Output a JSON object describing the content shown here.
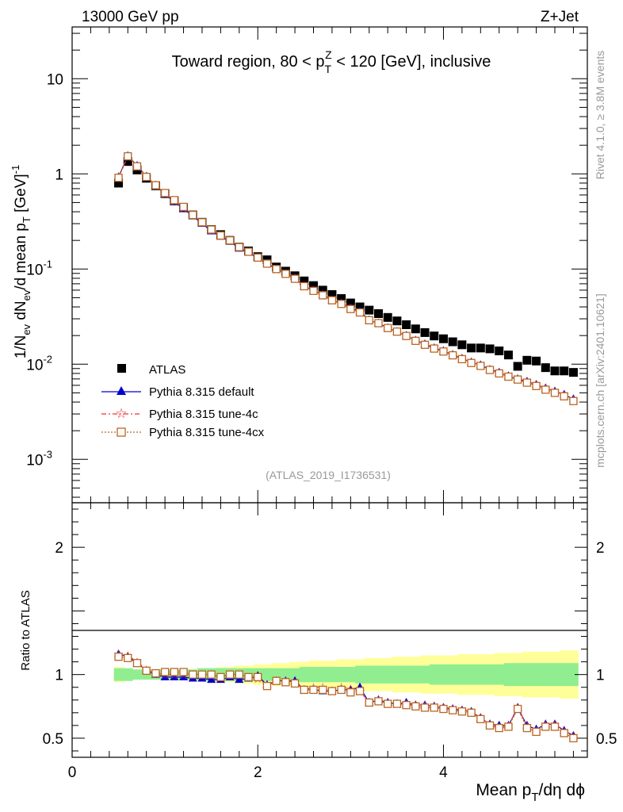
{
  "header": {
    "energy_label": "13000 GeV pp",
    "process_label": "Z+Jet",
    "region_title": "Toward region, 80 < p_T^Z < 120 [GeV], inclusive",
    "analysis_id": "(ATLAS_2019_I1736531)",
    "side_rivet": "Rivet 4.1.0, ≥ 3.8M events",
    "side_mcplots": "mcplots.cern.ch [arXiv:2401.10621]"
  },
  "colors": {
    "atlas": "#000000",
    "default": "#0000cc",
    "tune4c": "#ee3333",
    "tune4cx": "#bb6622",
    "band_inner": "#90ee90",
    "band_outer": "#ffff99"
  },
  "chart_data": [
    {
      "id": "main",
      "type": "scatter",
      "yscale": "log",
      "xlim": [
        0,
        5.55
      ],
      "ylim": [
        0.00035,
        35
      ],
      "ylabel": "1/N_ev dN_ev/d mean p_T [GeV]^-1",
      "ytick_labels": [
        "10^-3",
        "10^-2",
        "10^-1",
        "1",
        "10"
      ],
      "x": [
        0.5,
        0.6,
        0.7,
        0.8,
        0.9,
        1.0,
        1.1,
        1.2,
        1.3,
        1.4,
        1.5,
        1.6,
        1.7,
        1.8,
        1.9,
        2.0,
        2.1,
        2.2,
        2.3,
        2.4,
        2.5,
        2.6,
        2.7,
        2.8,
        2.9,
        3.0,
        3.1,
        3.2,
        3.3,
        3.4,
        3.5,
        3.6,
        3.7,
        3.8,
        3.9,
        4.0,
        4.1,
        4.2,
        4.3,
        4.4,
        4.5,
        4.6,
        4.7,
        4.8,
        4.9,
        5.0,
        5.1,
        5.2,
        5.3,
        5.4
      ],
      "series": [
        {
          "name": "ATLAS",
          "marker": "square",
          "values": [
            0.8,
            1.35,
            1.1,
            0.9,
            0.75,
            0.62,
            0.52,
            0.44,
            0.37,
            0.31,
            0.26,
            0.23,
            0.2,
            0.17,
            0.155,
            0.135,
            0.125,
            0.105,
            0.095,
            0.085,
            0.075,
            0.067,
            0.06,
            0.054,
            0.049,
            0.044,
            0.04,
            0.037,
            0.034,
            0.031,
            0.0285,
            0.026,
            0.0235,
            0.0215,
            0.0198,
            0.0185,
            0.0172,
            0.016,
            0.0148,
            0.0148,
            0.0145,
            0.0138,
            0.0125,
            0.0095,
            0.011,
            0.0108,
            0.0092,
            0.0085,
            0.0085,
            0.0082
          ]
        },
        {
          "name": "Pythia 8.315 default",
          "marker": "triangle",
          "values": [
            0.93,
            1.55,
            1.22,
            0.94,
            0.76,
            0.61,
            0.51,
            0.43,
            0.36,
            0.3,
            0.25,
            0.22,
            0.195,
            0.165,
            0.15,
            0.13,
            0.115,
            0.1,
            0.09,
            0.08,
            0.066,
            0.06,
            0.054,
            0.047,
            0.044,
            0.039,
            0.036,
            0.029,
            0.027,
            0.024,
            0.022,
            0.02,
            0.0178,
            0.0163,
            0.0148,
            0.0138,
            0.0126,
            0.0115,
            0.0105,
            0.0098,
            0.0088,
            0.0082,
            0.0075,
            0.007,
            0.0066,
            0.0061,
            0.0056,
            0.0052,
            0.0048,
            0.0043
          ]
        },
        {
          "name": "Pythia 8.315 tune-4c",
          "marker": "star",
          "values": [
            0.93,
            1.55,
            1.22,
            0.94,
            0.76,
            0.62,
            0.52,
            0.44,
            0.37,
            0.31,
            0.26,
            0.225,
            0.2,
            0.17,
            0.152,
            0.131,
            0.115,
            0.1,
            0.09,
            0.08,
            0.066,
            0.06,
            0.054,
            0.047,
            0.044,
            0.039,
            0.035,
            0.029,
            0.027,
            0.024,
            0.022,
            0.02,
            0.0178,
            0.0163,
            0.0148,
            0.0138,
            0.0126,
            0.0115,
            0.0105,
            0.0098,
            0.0088,
            0.0082,
            0.0075,
            0.007,
            0.0066,
            0.0061,
            0.0056,
            0.0052,
            0.0048,
            0.0043
          ]
        },
        {
          "name": "Pythia 8.315 tune-4cx",
          "marker": "open-square",
          "values": [
            0.91,
            1.53,
            1.2,
            0.93,
            0.76,
            0.63,
            0.53,
            0.45,
            0.37,
            0.31,
            0.26,
            0.225,
            0.2,
            0.17,
            0.152,
            0.132,
            0.114,
            0.1,
            0.089,
            0.079,
            0.066,
            0.059,
            0.053,
            0.047,
            0.043,
            0.038,
            0.035,
            0.029,
            0.027,
            0.024,
            0.022,
            0.0198,
            0.0176,
            0.016,
            0.0146,
            0.0136,
            0.0124,
            0.0113,
            0.0103,
            0.0096,
            0.0087,
            0.008,
            0.0074,
            0.0069,
            0.0064,
            0.0059,
            0.0054,
            0.005,
            0.0046,
            0.0041
          ]
        }
      ]
    },
    {
      "id": "ratio",
      "type": "scatter",
      "xlim": [
        0,
        5.55
      ],
      "ylim": [
        0.35,
        2.35
      ],
      "xlabel": "Mean p_T/dη dϕ",
      "ylabel": "Ratio to ATLAS",
      "xtick_labels": [
        "0",
        "2",
        "4"
      ],
      "ytick_labels": [
        "0.5",
        "1",
        "2"
      ],
      "band_inner_halfwidth": [
        0.05,
        0.05,
        0.04,
        0.04,
        0.04,
        0.04,
        0.04,
        0.04,
        0.04,
        0.05,
        0.05,
        0.05,
        0.05,
        0.05,
        0.05,
        0.05,
        0.05,
        0.05,
        0.05,
        0.05,
        0.06,
        0.06,
        0.06,
        0.06,
        0.06,
        0.06,
        0.07,
        0.07,
        0.07,
        0.07,
        0.07,
        0.07,
        0.07,
        0.07,
        0.08,
        0.08,
        0.08,
        0.08,
        0.08,
        0.08,
        0.08,
        0.08,
        0.09,
        0.09,
        0.09,
        0.09,
        0.09,
        0.09,
        0.09,
        0.09
      ],
      "band_outer_halfwidth": [
        0.06,
        0.05,
        0.04,
        0.03,
        0.03,
        0.04,
        0.04,
        0.04,
        0.04,
        0.05,
        0.05,
        0.06,
        0.06,
        0.07,
        0.07,
        0.08,
        0.08,
        0.09,
        0.09,
        0.1,
        0.1,
        0.11,
        0.11,
        0.11,
        0.12,
        0.12,
        0.12,
        0.13,
        0.13,
        0.13,
        0.14,
        0.14,
        0.14,
        0.15,
        0.15,
        0.15,
        0.15,
        0.16,
        0.16,
        0.16,
        0.16,
        0.17,
        0.17,
        0.17,
        0.18,
        0.18,
        0.18,
        0.18,
        0.19,
        0.19
      ],
      "series": [
        {
          "name": "Pythia 8.315 default",
          "values": [
            1.16,
            1.14,
            1.09,
            1.03,
            1.0,
            0.98,
            0.98,
            0.98,
            0.97,
            0.97,
            0.96,
            0.96,
            0.98,
            0.96,
            0.97,
            0.99,
            0.92,
            0.95,
            0.95,
            0.95,
            0.88,
            0.88,
            0.87,
            0.87,
            0.88,
            0.88,
            0.9,
            0.78,
            0.8,
            0.78,
            0.77,
            0.78,
            0.76,
            0.76,
            0.75,
            0.74,
            0.73,
            0.72,
            0.71,
            0.66,
            0.61,
            0.6,
            0.6,
            0.74,
            0.6,
            0.57,
            0.61,
            0.61,
            0.56,
            0.52
          ]
        },
        {
          "name": "Pythia 8.315 tune-4c",
          "values": [
            1.16,
            1.15,
            1.1,
            1.04,
            1.01,
            1.0,
            1.0,
            1.0,
            1.0,
            1.0,
            1.0,
            0.98,
            1.0,
            1.0,
            0.98,
            0.97,
            0.92,
            0.95,
            0.95,
            0.94,
            0.88,
            0.9,
            0.9,
            0.87,
            0.9,
            0.89,
            0.87,
            0.78,
            0.8,
            0.77,
            0.77,
            0.77,
            0.76,
            0.76,
            0.75,
            0.74,
            0.73,
            0.72,
            0.71,
            0.66,
            0.61,
            0.59,
            0.6,
            0.74,
            0.6,
            0.56,
            0.61,
            0.61,
            0.56,
            0.52
          ]
        },
        {
          "name": "Pythia 8.315 tune-4cx",
          "values": [
            1.14,
            1.13,
            1.09,
            1.03,
            1.01,
            1.02,
            1.02,
            1.02,
            1.0,
            1.0,
            1.0,
            0.98,
            1.0,
            1.0,
            0.98,
            0.98,
            0.91,
            0.95,
            0.94,
            0.93,
            0.88,
            0.88,
            0.88,
            0.87,
            0.88,
            0.86,
            0.87,
            0.78,
            0.79,
            0.77,
            0.77,
            0.76,
            0.75,
            0.74,
            0.74,
            0.73,
            0.72,
            0.71,
            0.7,
            0.65,
            0.6,
            0.58,
            0.59,
            0.73,
            0.58,
            0.55,
            0.59,
            0.59,
            0.54,
            0.5
          ]
        }
      ]
    }
  ],
  "legend": [
    {
      "label": "ATLAS"
    },
    {
      "label": "Pythia 8.315 default"
    },
    {
      "label": "Pythia 8.315 tune-4c"
    },
    {
      "label": "Pythia 8.315 tune-4cx"
    }
  ]
}
